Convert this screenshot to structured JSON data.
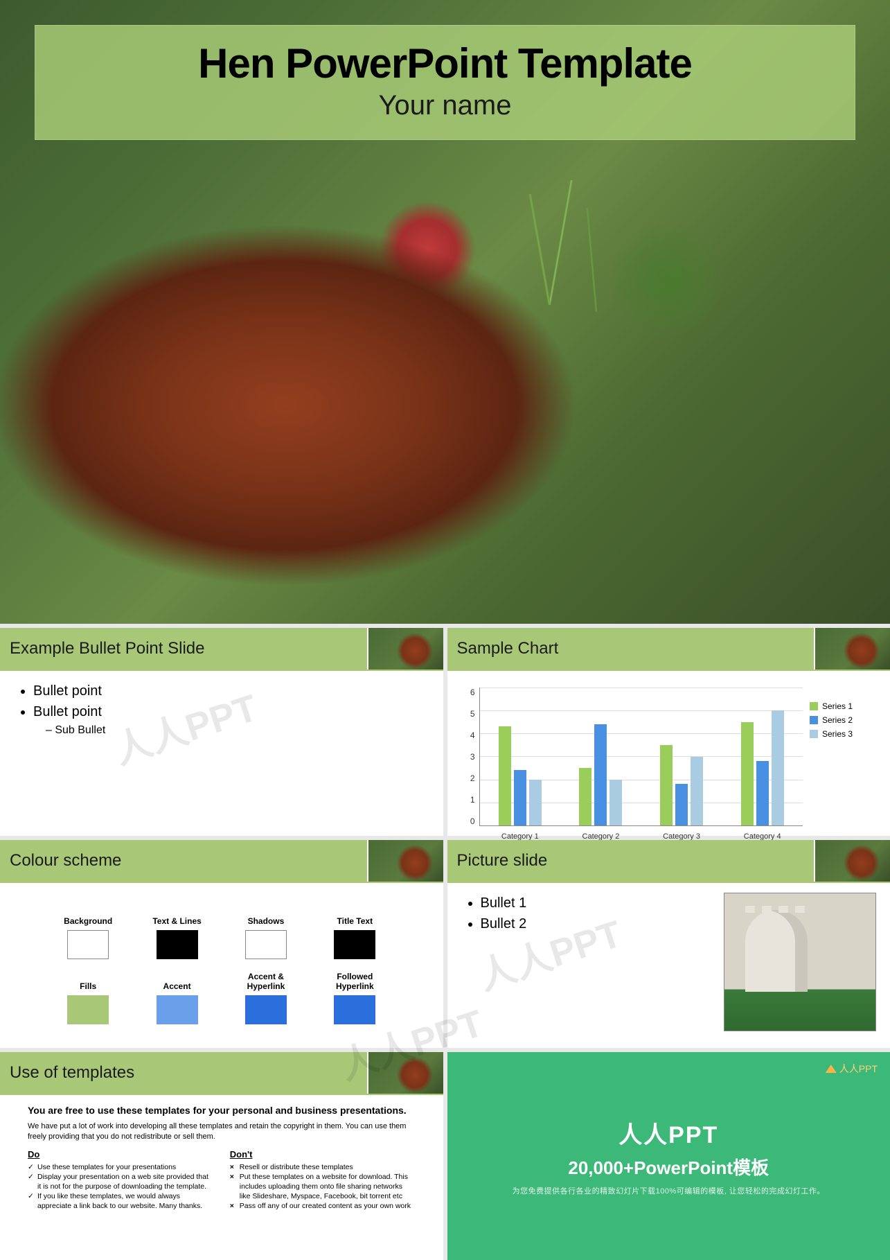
{
  "hero": {
    "title": "Hen PowerPoint Template",
    "subtitle": "Your name"
  },
  "slides": {
    "bullet": {
      "title": "Example Bullet Point Slide",
      "items": [
        "Bullet point",
        "Bullet point"
      ],
      "sub_item": "Sub Bullet"
    },
    "chart": {
      "title": "Sample Chart",
      "type": "bar",
      "ylim": [
        0,
        6
      ],
      "ytick_step": 1,
      "categories": [
        "Category 1",
        "Category 2",
        "Category 3",
        "Category 4"
      ],
      "series": [
        {
          "name": "Series 1",
          "color": "#9acd5a",
          "values": [
            4.3,
            2.5,
            3.5,
            4.5
          ]
        },
        {
          "name": "Series 2",
          "color": "#4a90e2",
          "values": [
            2.4,
            4.4,
            1.8,
            2.8
          ]
        },
        {
          "name": "Series 3",
          "color": "#a9cce3",
          "values": [
            2.0,
            2.0,
            3.0,
            5.0
          ]
        }
      ],
      "axis_color": "#888888",
      "grid_color": "#dddddd",
      "label_fontsize": 11
    },
    "colors": {
      "title": "Colour scheme",
      "swatches": [
        {
          "label": "Background",
          "color": "#ffffff",
          "border": true
        },
        {
          "label": "Text & Lines",
          "color": "#000000"
        },
        {
          "label": "Shadows",
          "color": "#ffffff",
          "border": true
        },
        {
          "label": "Title Text",
          "color": "#000000"
        },
        {
          "label": "Fills",
          "color": "#a8c878"
        },
        {
          "label": "Accent",
          "color": "#6aa0ea"
        },
        {
          "label": "Accent & Hyperlink",
          "color": "#2a6fdc"
        },
        {
          "label": "Followed Hyperlink",
          "color": "#2a6fdc"
        }
      ]
    },
    "picture": {
      "title": "Picture slide",
      "bullets": [
        "Bullet 1",
        "Bullet 2"
      ]
    },
    "use": {
      "title": "Use of templates",
      "intro": "You are free to use these templates for your personal and business presentations.",
      "note": "We have put a lot of work into developing all these templates and retain the copyright in them.  You can use them freely providing that you do not redistribute or sell them.",
      "do_header": "Do",
      "dont_header": "Don't",
      "do": [
        "Use these templates for your presentations",
        "Display your presentation on a web site provided that it is not for the purpose of downloading the template.",
        "If you like these templates, we would always appreciate a link back to our website.  Many thanks."
      ],
      "dont": [
        "Resell or distribute these templates",
        "Put these templates on a website for download.  This includes uploading them onto file sharing networks like Slideshare, Myspace, Facebook, bit torrent etc",
        "Pass off any of our created content as your own work"
      ]
    },
    "promo": {
      "logo": "人人PPT",
      "title": "人人PPT",
      "subtitle": "20,000+PowerPoint模板",
      "tagline": "为您免费提供各行各业的精致幻灯片下载100%可编辑的模板, 让您轻松的完成幻灯工作。",
      "bg_color": "#3cb878"
    }
  },
  "watermark": "人人PPT"
}
